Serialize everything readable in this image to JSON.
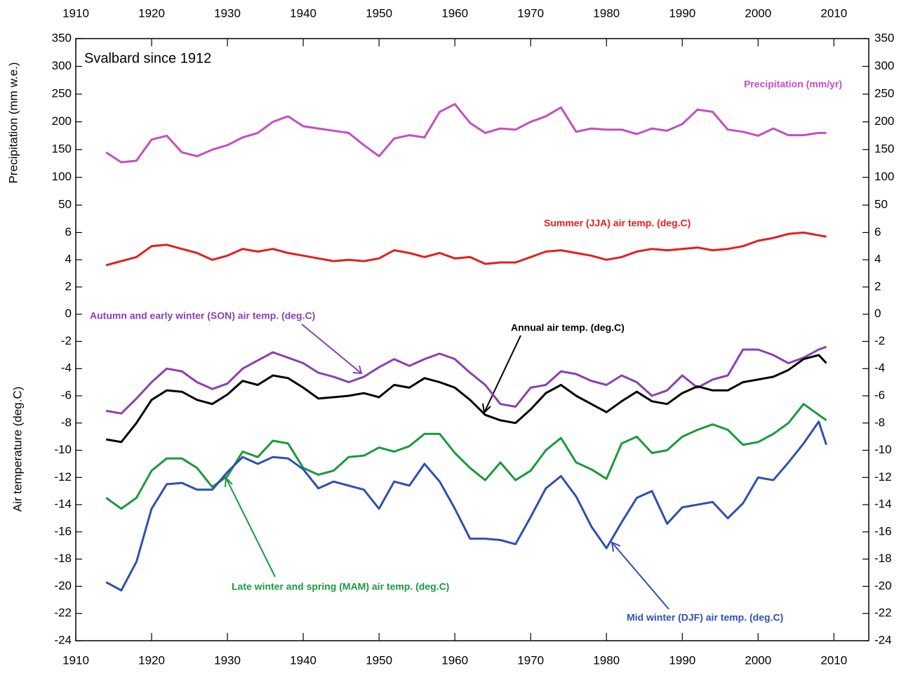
{
  "chart_data": [
    {
      "type": "line",
      "title": "Svalbard since 1912",
      "y_label": "Precipitation (mm w.e.)",
      "xlim": [
        1910,
        2014.6
      ],
      "xticks": [
        1910,
        1920,
        1930,
        1940,
        1950,
        1960,
        1970,
        1980,
        1990,
        2000,
        2010
      ],
      "ylim": [
        25,
        350
      ],
      "yticks": [
        50,
        100,
        150,
        200,
        250,
        300,
        350
      ],
      "x": [
        1914,
        1916,
        1918,
        1920,
        1922,
        1924,
        1926,
        1928,
        1930,
        1932,
        1934,
        1936,
        1938,
        1940,
        1942,
        1944,
        1946,
        1948,
        1950,
        1952,
        1954,
        1956,
        1958,
        1960,
        1962,
        1964,
        1966,
        1968,
        1970,
        1972,
        1974,
        1976,
        1978,
        1980,
        1982,
        1984,
        1986,
        1988,
        1990,
        1992,
        1994,
        1996,
        1998,
        2000,
        2002,
        2004,
        2006,
        2008,
        2009
      ],
      "series": [
        {
          "name": "Precipitation (mm/yr)",
          "color": "#c34fbf",
          "values": [
            145,
            127,
            130,
            168,
            175,
            145,
            138,
            150,
            158,
            172,
            180,
            200,
            210,
            192,
            188,
            184,
            180,
            158,
            138,
            170,
            176,
            172,
            218,
            232,
            198,
            180,
            188,
            186,
            200,
            210,
            226,
            182,
            188,
            186,
            186,
            178,
            188,
            184,
            196,
            222,
            218,
            186,
            182,
            175,
            188,
            176,
            176,
            180,
            180
          ]
        }
      ]
    },
    {
      "type": "line",
      "y_label": "Air temperature (deg.C)",
      "xlim": [
        1910,
        2014.6
      ],
      "xticks": [
        1910,
        1920,
        1930,
        1940,
        1950,
        1960,
        1970,
        1980,
        1990,
        2000,
        2010
      ],
      "ylim": [
        -24,
        7
      ],
      "yticks": [
        -24,
        -22,
        -20,
        -18,
        -16,
        -14,
        -12,
        -10,
        -8,
        -6,
        -4,
        -2,
        0,
        2,
        4,
        6
      ],
      "x": [
        1914,
        1916,
        1918,
        1920,
        1922,
        1924,
        1926,
        1928,
        1930,
        1932,
        1934,
        1936,
        1938,
        1940,
        1942,
        1944,
        1946,
        1948,
        1950,
        1952,
        1954,
        1956,
        1958,
        1960,
        1962,
        1964,
        1966,
        1968,
        1970,
        1972,
        1974,
        1976,
        1978,
        1980,
        1982,
        1984,
        1986,
        1988,
        1990,
        1992,
        1994,
        1996,
        1998,
        2000,
        2002,
        2004,
        2006,
        2008,
        2009
      ],
      "series": [
        {
          "name": "Summer (JJA) air temp. (deg.C)",
          "color": "#e41e1e",
          "values": [
            3.6,
            3.9,
            4.2,
            5.0,
            5.1,
            4.8,
            4.5,
            4.0,
            4.3,
            4.8,
            4.6,
            4.8,
            4.5,
            4.3,
            4.1,
            3.9,
            4.0,
            3.9,
            4.1,
            4.7,
            4.5,
            4.2,
            4.5,
            4.1,
            4.2,
            3.7,
            3.8,
            3.8,
            4.2,
            4.6,
            4.7,
            4.5,
            4.3,
            4.0,
            4.2,
            4.6,
            4.8,
            4.7,
            4.8,
            4.9,
            4.7,
            4.8,
            5.0,
            5.4,
            5.6,
            5.9,
            6.0,
            5.8,
            5.7
          ]
        },
        {
          "name": "Autumn and early winter (SON) air temp. (deg.C)",
          "color": "#8a3fb5",
          "values": [
            -7.1,
            -7.3,
            -6.2,
            -5.0,
            -4.0,
            -4.2,
            -5.0,
            -5.5,
            -5.1,
            -4.0,
            -3.4,
            -2.8,
            -3.2,
            -3.6,
            -4.3,
            -4.6,
            -5.0,
            -4.6,
            -3.9,
            -3.3,
            -3.8,
            -3.3,
            -2.9,
            -3.3,
            -4.3,
            -5.2,
            -6.6,
            -6.8,
            -5.4,
            -5.2,
            -4.2,
            -4.4,
            -4.9,
            -5.2,
            -4.5,
            -5.0,
            -6.0,
            -5.6,
            -4.5,
            -5.4,
            -4.8,
            -4.5,
            -2.6,
            -2.6,
            -3.0,
            -3.6,
            -3.2,
            -2.6,
            -2.4
          ]
        },
        {
          "name": "Annual air temp. (deg.C)",
          "color": "#000000",
          "values": [
            -9.2,
            -9.4,
            -8.0,
            -6.3,
            -5.6,
            -5.7,
            -6.3,
            -6.6,
            -5.9,
            -4.9,
            -5.2,
            -4.5,
            -4.7,
            -5.4,
            -6.2,
            -6.1,
            -6.0,
            -5.8,
            -6.1,
            -5.2,
            -5.4,
            -4.7,
            -5.0,
            -5.4,
            -6.3,
            -7.4,
            -7.8,
            -8.0,
            -7.0,
            -5.8,
            -5.2,
            -6.0,
            -6.6,
            -7.2,
            -6.4,
            -5.7,
            -6.4,
            -6.6,
            -5.8,
            -5.3,
            -5.6,
            -5.6,
            -5.0,
            -4.8,
            -4.6,
            -4.1,
            -3.3,
            -3.0,
            -3.6
          ]
        },
        {
          "name": "Late winter and spring (MAM) air temp. (deg.C)",
          "color": "#1a9a3c",
          "values": [
            -13.5,
            -14.3,
            -13.5,
            -11.5,
            -10.6,
            -10.6,
            -11.3,
            -12.7,
            -11.9,
            -10.1,
            -10.5,
            -9.3,
            -9.5,
            -11.3,
            -11.8,
            -11.5,
            -10.5,
            -10.4,
            -9.8,
            -10.1,
            -9.7,
            -8.8,
            -8.8,
            -10.2,
            -11.3,
            -12.2,
            -10.9,
            -12.2,
            -11.5,
            -10.0,
            -9.1,
            -10.9,
            -11.4,
            -12.1,
            -9.5,
            -9.0,
            -10.2,
            -10.0,
            -9.0,
            -8.5,
            -8.1,
            -8.5,
            -9.6,
            -9.4,
            -8.8,
            -8.0,
            -6.6,
            -7.4,
            -7.8
          ]
        },
        {
          "name": "Mid winter (DJF) air temp. (deg.C)",
          "color": "#2f4fb2",
          "values": [
            -19.7,
            -20.3,
            -18.2,
            -14.3,
            -12.5,
            -12.4,
            -12.9,
            -12.9,
            -11.6,
            -10.5,
            -11.0,
            -10.5,
            -10.6,
            -11.4,
            -12.8,
            -12.3,
            -12.6,
            -12.9,
            -14.3,
            -12.3,
            -12.6,
            -11.0,
            -12.3,
            -14.3,
            -16.5,
            -16.5,
            -16.6,
            -16.9,
            -14.9,
            -12.8,
            -11.9,
            -13.4,
            -15.6,
            -17.2,
            -15.3,
            -13.5,
            -13.0,
            -15.4,
            -14.2,
            -14.0,
            -13.8,
            -15.0,
            -13.9,
            -12.0,
            -12.2,
            -10.9,
            -9.5,
            -7.9,
            -9.6
          ]
        }
      ]
    }
  ]
}
